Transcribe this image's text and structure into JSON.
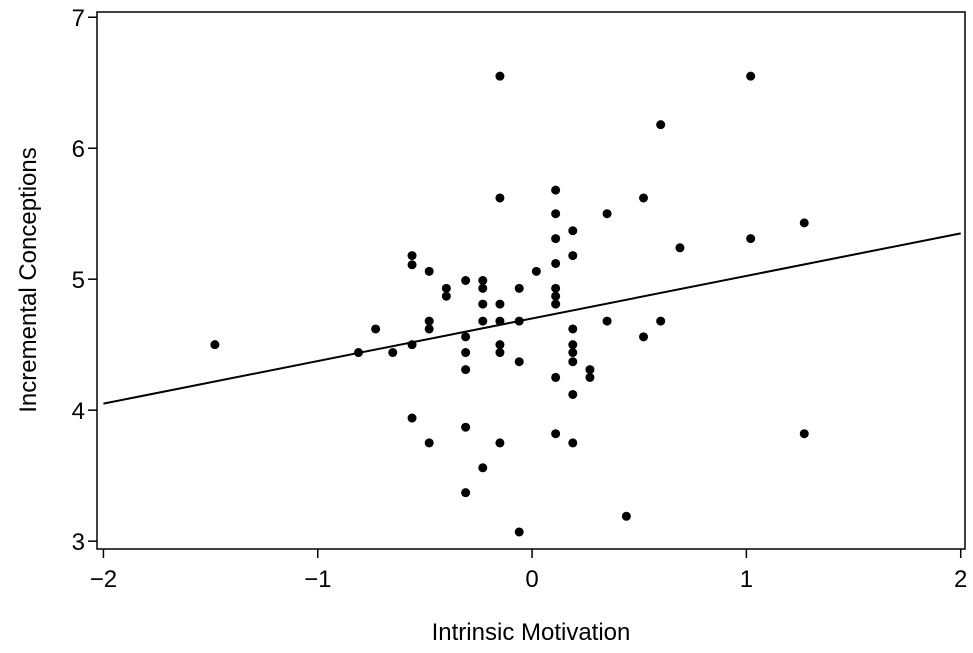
{
  "chart_data": {
    "type": "scatter",
    "x_label": "Intrinsic Motivation",
    "y_label": "Incremental Conceptions",
    "xlim": [
      -2.03,
      2.02
    ],
    "ylim": [
      2.94,
      7.04
    ],
    "xticks": [
      {
        "value": -2,
        "label": "−2"
      },
      {
        "value": -1,
        "label": "−1"
      },
      0,
      1,
      2
    ],
    "yticks": [
      3,
      4,
      5,
      6,
      7
    ],
    "color": "#000000",
    "x": [
      -1.48,
      -0.81,
      -0.73,
      -0.65,
      -0.56,
      -0.56,
      -0.56,
      -0.56,
      -0.48,
      -0.48,
      -0.48,
      -0.48,
      -0.4,
      -0.4,
      -0.31,
      -0.31,
      -0.31,
      -0.31,
      -0.31,
      -0.31,
      -0.23,
      -0.23,
      -0.23,
      -0.23,
      -0.23,
      -0.15,
      -0.15,
      -0.15,
      -0.15,
      -0.15,
      -0.15,
      -0.15,
      -0.06,
      -0.06,
      -0.06,
      -0.06,
      0.02,
      0.11,
      0.11,
      0.11,
      0.11,
      0.11,
      0.11,
      0.11,
      0.11,
      0.11,
      0.19,
      0.19,
      0.19,
      0.19,
      0.19,
      0.19,
      0.19,
      0.19,
      0.27,
      0.27,
      0.35,
      0.35,
      0.44,
      0.52,
      0.52,
      0.6,
      0.6,
      0.69,
      1.02,
      1.02,
      1.27,
      1.27
    ],
    "values": [
      4.5,
      4.44,
      4.62,
      4.44,
      5.18,
      5.11,
      4.5,
      3.94,
      5.06,
      4.68,
      4.62,
      3.75,
      4.93,
      4.87,
      4.99,
      4.56,
      4.44,
      4.31,
      3.87,
      3.37,
      4.99,
      4.93,
      4.81,
      4.68,
      3.56,
      6.55,
      5.62,
      4.81,
      4.68,
      4.5,
      4.44,
      3.75,
      4.93,
      4.68,
      4.37,
      3.07,
      5.06,
      5.68,
      5.5,
      5.31,
      5.12,
      4.93,
      4.87,
      4.81,
      4.25,
      3.82,
      5.37,
      5.18,
      4.62,
      4.5,
      4.44,
      4.37,
      4.12,
      3.75,
      4.31,
      4.25,
      5.5,
      4.68,
      3.19,
      5.62,
      4.56,
      6.18,
      4.68,
      5.24,
      6.55,
      5.31,
      5.43,
      3.82
    ],
    "fit_line": {
      "x": [
        -2,
        2
      ],
      "values": [
        4.05,
        5.35
      ]
    }
  }
}
